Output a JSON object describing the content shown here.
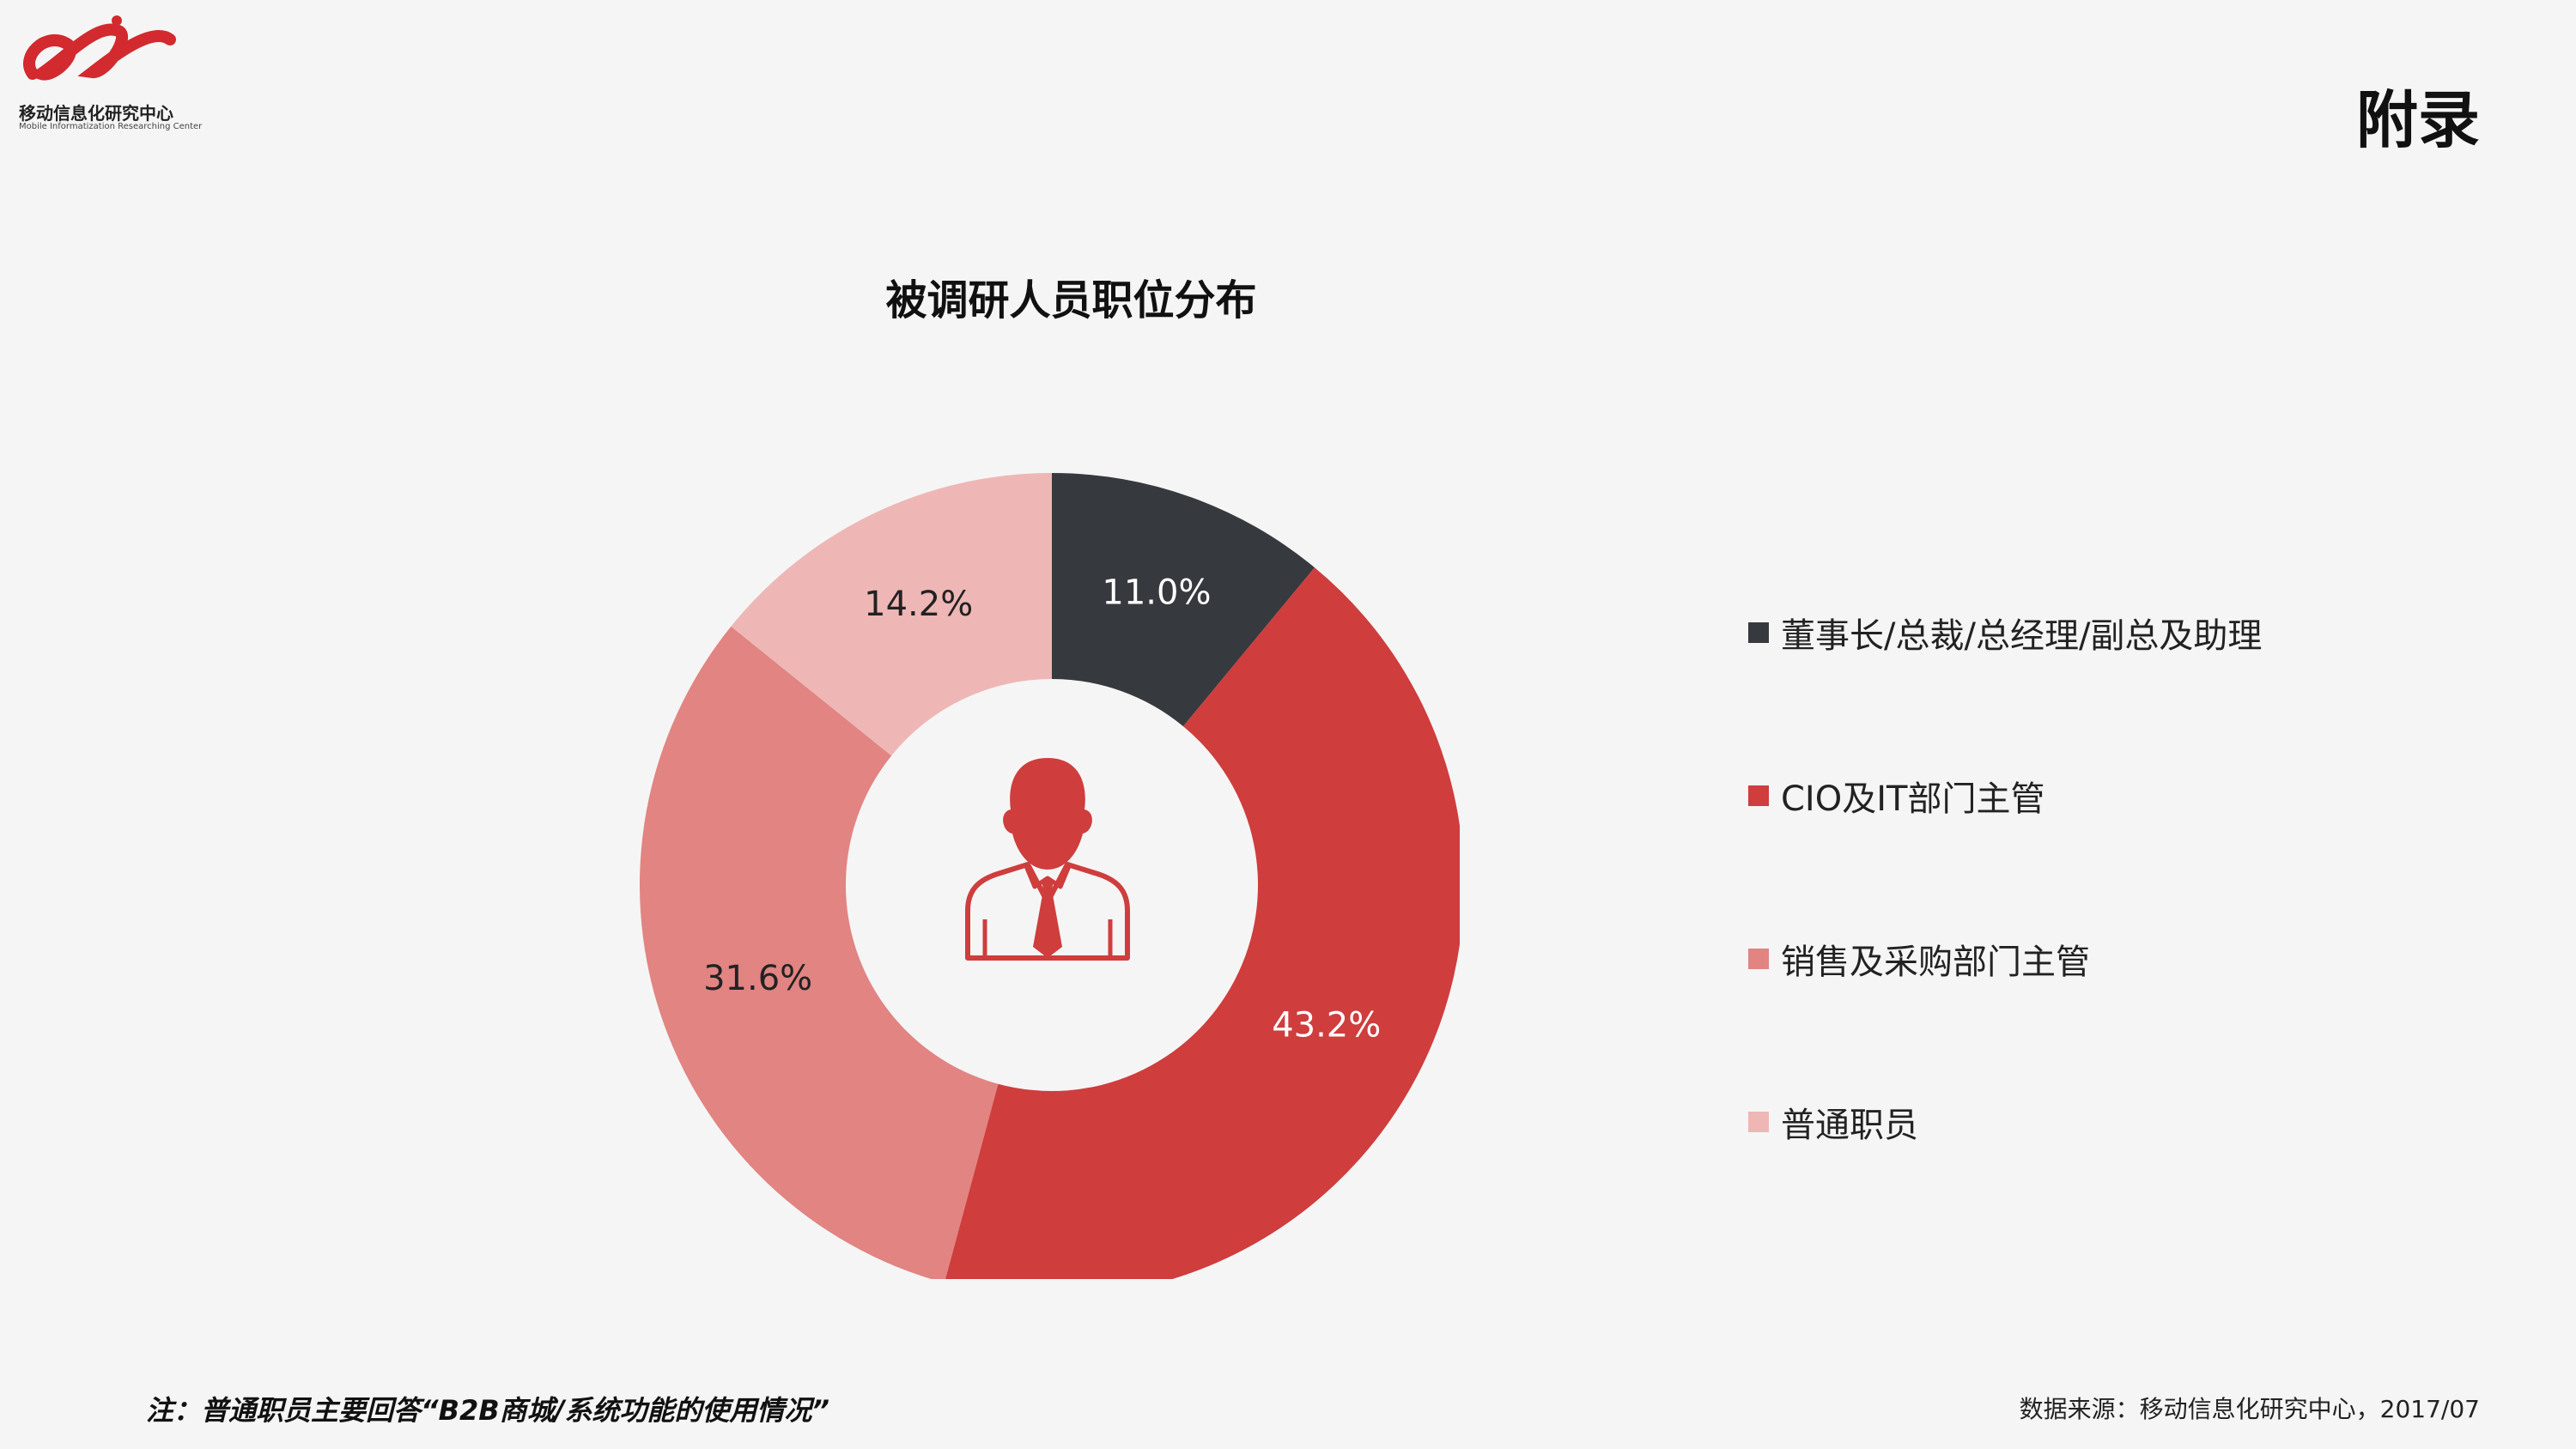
{
  "logo": {
    "name": "移动信息化研究中心",
    "subtitle": "Mobile Informatization Researching Center",
    "color": "#d22a2e"
  },
  "page_title": "附录",
  "chart_data": {
    "type": "pie",
    "donut": true,
    "title": "被调研人员职位分布",
    "legend_position": "right",
    "center_icon": "person-with-tie-icon",
    "slices": [
      {
        "label": "董事长/总裁/总经理/副总及助理",
        "value": 11.0,
        "value_label": "11.0%",
        "color": "#363a3e",
        "label_color": "#ffffff"
      },
      {
        "label": "CIO及IT部门主管",
        "value": 43.2,
        "value_label": "43.2%",
        "color": "#cf3d3d",
        "label_color": "#ffffff"
      },
      {
        "label": "销售及采购部门主管",
        "value": 31.6,
        "value_label": "31.6%",
        "color": "#e18482",
        "label_color": "#222222"
      },
      {
        "label": "普通职员",
        "value": 14.2,
        "value_label": "14.2%",
        "color": "#eeb7b6",
        "label_color": "#222222"
      }
    ]
  },
  "footer": {
    "note": "注：普通职员主要回答“B2B商城/系统功能的使用情况”",
    "source": "数据来源：移动信息化研究中心，2017/07"
  }
}
